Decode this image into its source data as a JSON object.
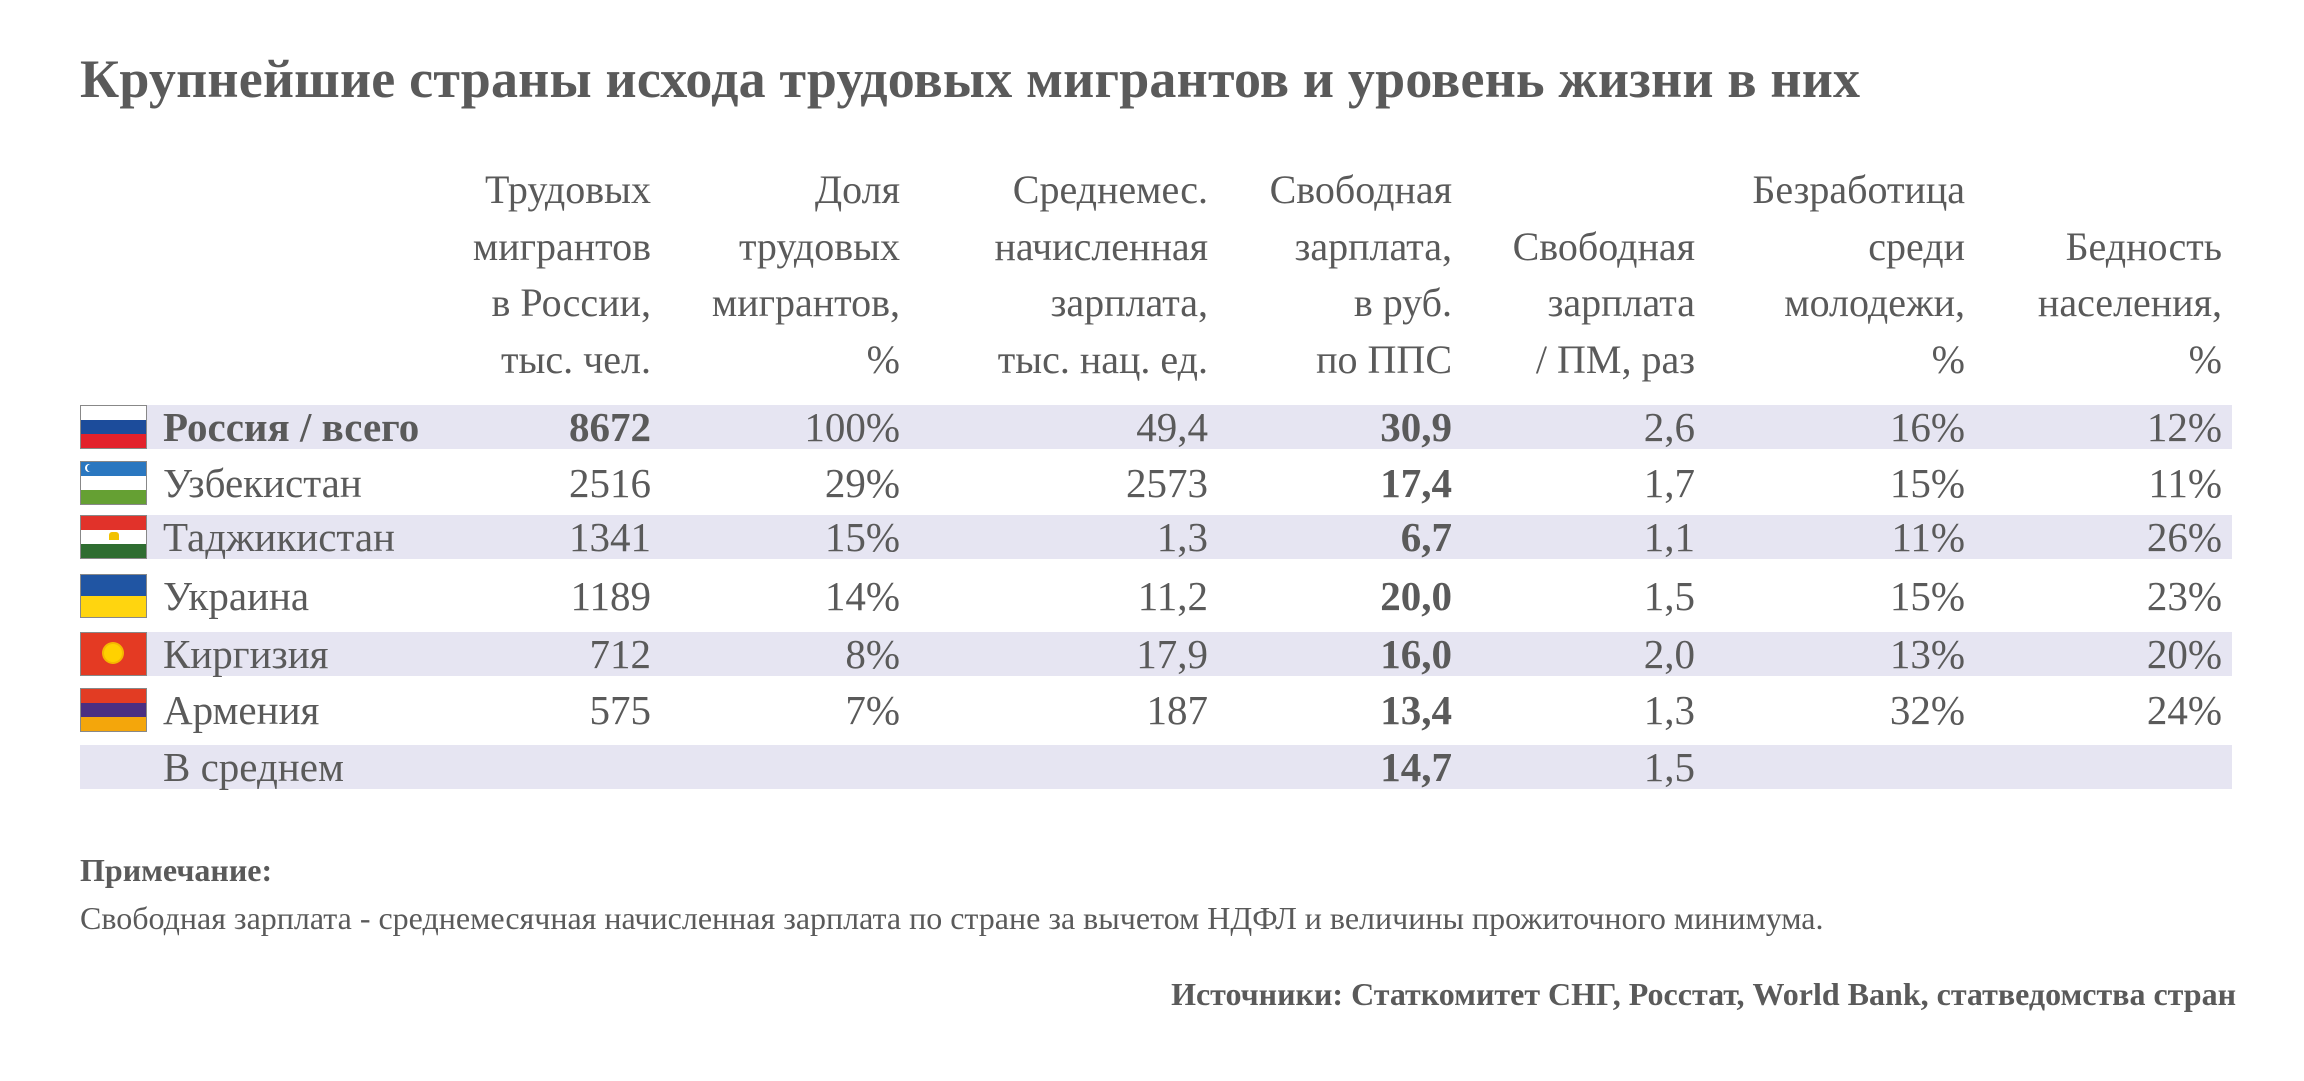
{
  "title": "Крупнейшие страны исхода трудовых мигрантов и уровень жизни в них",
  "columns": [
    {
      "lines": [
        "Трудовых",
        "мигрантов",
        "в России,",
        "тыс. чел."
      ]
    },
    {
      "lines": [
        "Доля",
        "трудовых",
        "мигрантов,",
        "%"
      ]
    },
    {
      "lines": [
        "Среднемес.",
        "начисленная",
        "зарплата,",
        "тыс. нац. ед."
      ]
    },
    {
      "lines": [
        "Свободная",
        "зарплата,",
        "в руб.",
        "по ППС"
      ]
    },
    {
      "lines": [
        "Свободная",
        "зарплата",
        "/ ПМ, раз"
      ]
    },
    {
      "lines": [
        "Безработица",
        "среди",
        "молодежи,",
        "%"
      ]
    },
    {
      "lines": [
        "Бедность",
        "населения,",
        "%"
      ]
    }
  ],
  "rows": [
    {
      "name": "Россия / всего",
      "flag": "russia-flag",
      "values": [
        "8672",
        "100%",
        "49,4",
        "30,9",
        "2,6",
        "16%",
        "12%"
      ]
    },
    {
      "name": "Узбекистан",
      "flag": "uzbekistan-flag",
      "values": [
        "2516",
        "29%",
        "2573",
        "17,4",
        "1,7",
        "15%",
        "11%"
      ]
    },
    {
      "name": "Таджикистан",
      "flag": "tajikistan-flag",
      "values": [
        "1341",
        "15%",
        "1,3",
        "6,7",
        "1,1",
        "11%",
        "26%"
      ]
    },
    {
      "name": "Украина",
      "flag": "ukraine-flag",
      "values": [
        "1189",
        "14%",
        "11,2",
        "20,0",
        "1,5",
        "15%",
        "23%"
      ]
    },
    {
      "name": "Киргизия",
      "flag": "kyrgyzstan-flag",
      "values": [
        "712",
        "8%",
        "17,9",
        "16,0",
        "2,0",
        "13%",
        "20%"
      ]
    },
    {
      "name": "Армения",
      "flag": "armenia-flag",
      "values": [
        "575",
        "7%",
        "187",
        "13,4",
        "1,3",
        "32%",
        "24%"
      ]
    },
    {
      "name": "В среднем",
      "flag": "",
      "values": [
        "",
        "",
        "",
        "14,7",
        "1,5",
        "",
        ""
      ]
    }
  ],
  "note": {
    "heading": "Примечание:",
    "text": "Свободная зарплата - среднемесячная начисленная зарплата по стране за вычетом НДФЛ и величины прожиточного минимума."
  },
  "sources": "Источники: Статкомитет СНГ, Росстат, World Bank, статведомства стран",
  "colors": {
    "text": "#5a5a5a",
    "row_shade": "#e6e5f2"
  }
}
